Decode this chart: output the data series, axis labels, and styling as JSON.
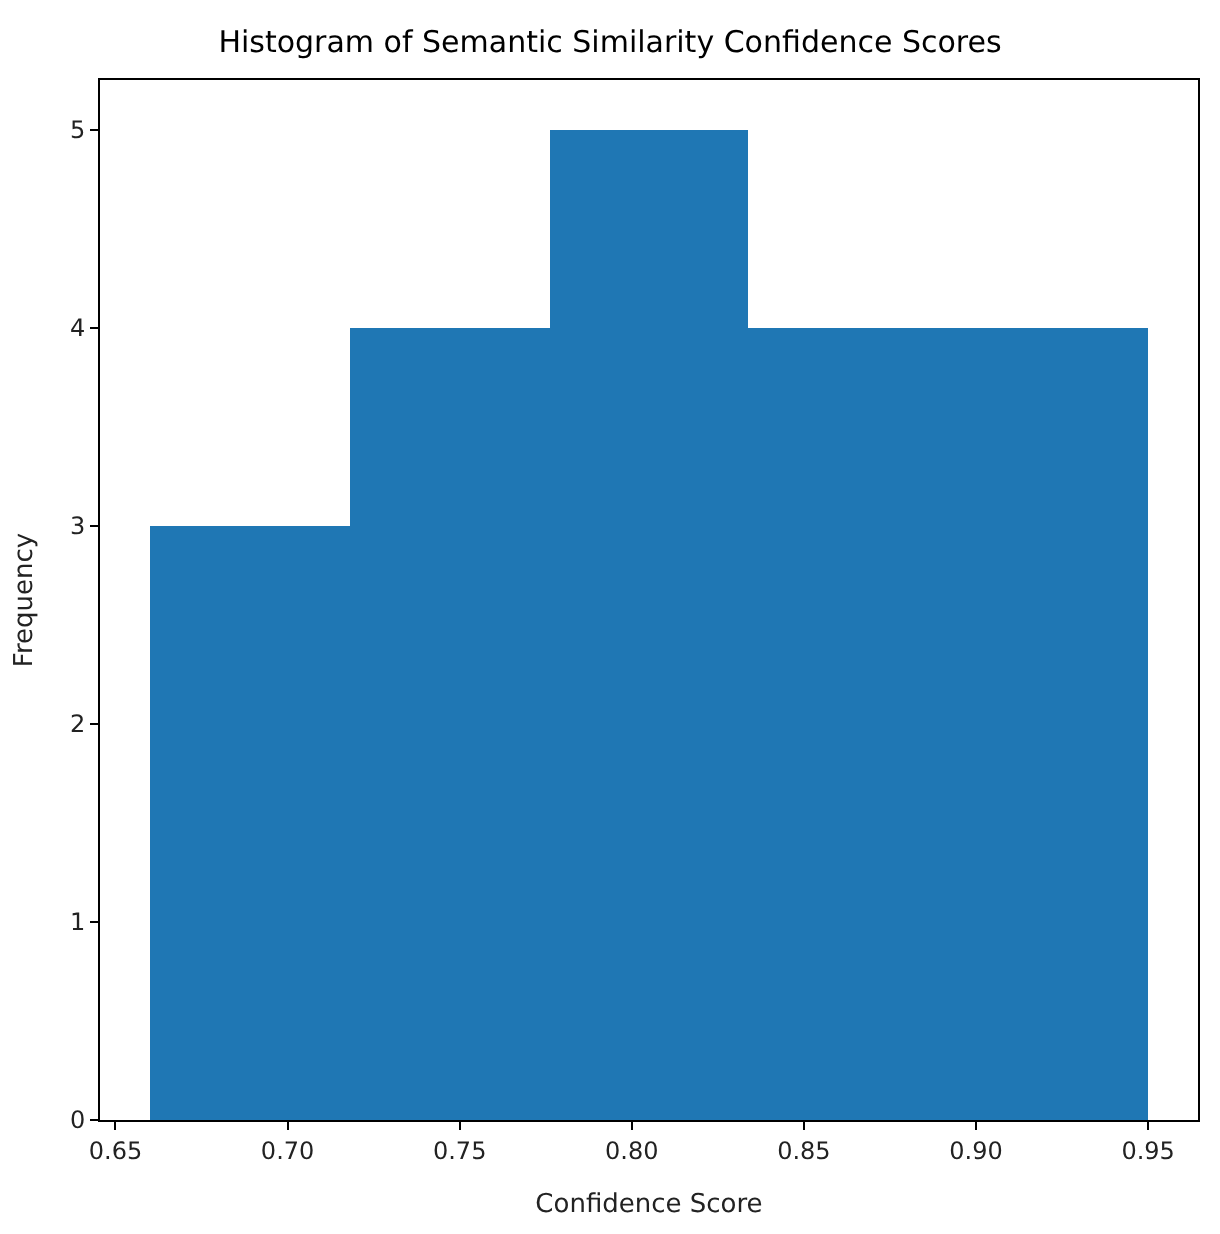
{
  "chart_data": {
    "type": "histogram",
    "title": "Histogram of Semantic Similarity Confidence Scores",
    "xlabel": "Confidence Score",
    "ylabel": "Frequency",
    "bins": [
      0.66,
      0.718,
      0.776,
      0.834,
      0.892,
      0.95
    ],
    "values": [
      3,
      4,
      5,
      4,
      4
    ],
    "color": "#1f77b4",
    "xlim": [
      0.6455,
      0.9645
    ],
    "xticks": [
      {
        "value": 0.65,
        "label": "0.65"
      },
      {
        "value": 0.7,
        "label": "0.70"
      },
      {
        "value": 0.75,
        "label": "0.75"
      },
      {
        "value": 0.8,
        "label": "0.80"
      },
      {
        "value": 0.85,
        "label": "0.85"
      },
      {
        "value": 0.9,
        "label": "0.90"
      },
      {
        "value": 0.95,
        "label": "0.95"
      }
    ],
    "ylim": [
      0,
      5.25
    ],
    "yticks": [
      0,
      1,
      2,
      3,
      4,
      5
    ]
  }
}
